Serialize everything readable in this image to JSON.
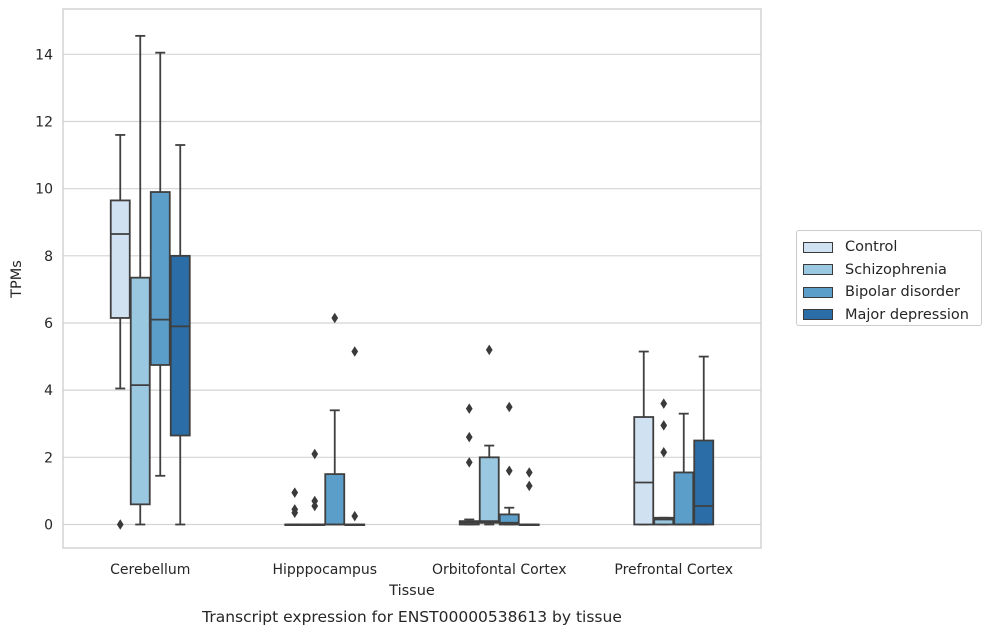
{
  "chart_data": {
    "type": "box",
    "title": "Transcript expression for ENST00000538613 by tissue",
    "xlabel": "Tissue",
    "ylabel": "TPMs",
    "ylim": [
      -0.7,
      15.35
    ],
    "yticks": [
      0,
      2,
      4,
      6,
      8,
      10,
      12,
      14
    ],
    "grid": "horizontal",
    "legend_position": "right",
    "categories": [
      "Cerebellum",
      "Hipppocampus",
      "Orbitofontal Cortex",
      "Prefrontal Cortex"
    ],
    "series": [
      {
        "name": "Control",
        "color": "#d0e1f2",
        "boxes": [
          {
            "min": 4.05,
            "q1": 6.15,
            "median": 8.65,
            "q3": 9.65,
            "max": 11.6,
            "outliers": [
              0.0
            ]
          },
          {
            "min": 0.0,
            "q1": 0.0,
            "median": 0.0,
            "q3": 0.0,
            "max": 0.0,
            "outliers": [
              0.35,
              0.45,
              0.95
            ]
          },
          {
            "min": 0.0,
            "q1": 0.0,
            "median": 0.05,
            "q3": 0.1,
            "max": 0.15,
            "outliers": [
              1.85,
              2.6,
              3.45
            ]
          },
          {
            "min": 0.0,
            "q1": 0.0,
            "median": 1.25,
            "q3": 3.2,
            "max": 5.15,
            "outliers": []
          }
        ]
      },
      {
        "name": "Schizophrenia",
        "color": "#9ac8e0",
        "boxes": [
          {
            "min": 0.0,
            "q1": 0.6,
            "median": 4.15,
            "q3": 7.35,
            "max": 14.55,
            "outliers": []
          },
          {
            "min": 0.0,
            "q1": 0.0,
            "median": 0.0,
            "q3": 0.0,
            "max": 0.0,
            "outliers": [
              0.55,
              0.7,
              2.1
            ]
          },
          {
            "min": 0.0,
            "q1": 0.05,
            "median": 0.1,
            "q3": 2.0,
            "max": 2.35,
            "outliers": [
              5.2
            ]
          },
          {
            "min": 0.0,
            "q1": 0.0,
            "median": 0.15,
            "q3": 0.2,
            "max": 0.2,
            "outliers": [
              2.15,
              2.95,
              3.6
            ]
          }
        ]
      },
      {
        "name": "Bipolar disorder",
        "color": "#5a9ec9",
        "boxes": [
          {
            "min": 1.45,
            "q1": 4.75,
            "median": 6.1,
            "q3": 9.9,
            "max": 14.05,
            "outliers": []
          },
          {
            "min": 0.0,
            "q1": 0.0,
            "median": 0.0,
            "q3": 1.5,
            "max": 3.4,
            "outliers": [
              6.15
            ]
          },
          {
            "min": 0.0,
            "q1": 0.0,
            "median": 0.05,
            "q3": 0.3,
            "max": 0.5,
            "outliers": [
              1.6,
              3.5
            ]
          },
          {
            "min": 0.0,
            "q1": 0.0,
            "median": 0.0,
            "q3": 1.55,
            "max": 3.3,
            "outliers": []
          }
        ]
      },
      {
        "name": "Major depression",
        "color": "#2b6da6",
        "boxes": [
          {
            "min": 0.0,
            "q1": 2.65,
            "median": 5.9,
            "q3": 8.0,
            "max": 11.3,
            "outliers": []
          },
          {
            "min": 0.0,
            "q1": 0.0,
            "median": 0.0,
            "q3": 0.0,
            "max": 0.0,
            "outliers": [
              0.25,
              5.15
            ]
          },
          {
            "min": 0.0,
            "q1": 0.0,
            "median": 0.0,
            "q3": 0.0,
            "max": 0.0,
            "outliers": [
              1.15,
              1.55
            ]
          },
          {
            "min": 0.0,
            "q1": 0.0,
            "median": 0.55,
            "q3": 2.5,
            "max": 5.0,
            "outliers": []
          }
        ]
      }
    ]
  }
}
